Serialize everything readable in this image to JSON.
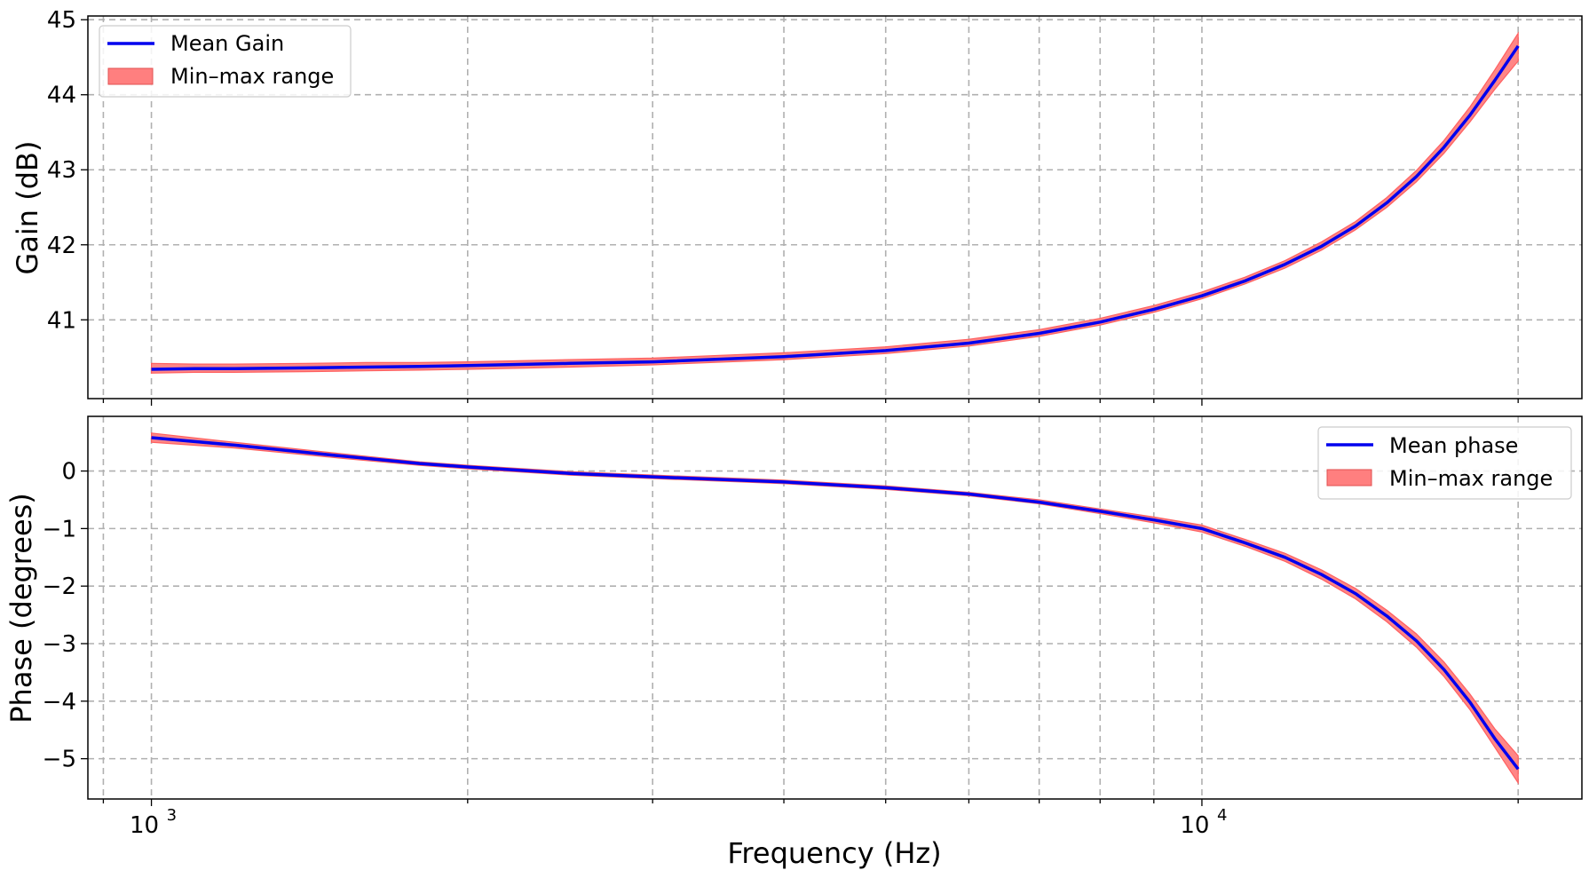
{
  "chart_data": [
    {
      "type": "line",
      "xscale": "log",
      "xlim": [
        870,
        23000
      ],
      "ylim": [
        39.95,
        45.05
      ],
      "ylabel": "Gain (dB)",
      "yticks": [
        41,
        42,
        43,
        44,
        45
      ],
      "ytick_labels": [
        "41",
        "42",
        "43",
        "44",
        "45"
      ],
      "grid": true,
      "legend_position": "upper left",
      "band_color": "#ff7f7f",
      "line_color": "#0000ee",
      "series": [
        {
          "name": "Mean Gain",
          "x": [
            1000,
            1100,
            1200,
            1400,
            1600,
            1800,
            2000,
            2500,
            3000,
            4000,
            5000,
            6000,
            7000,
            8000,
            9000,
            10000,
            11000,
            12000,
            13000,
            14000,
            15000,
            16000,
            17000,
            18000,
            19000,
            20000
          ],
          "y": [
            40.34,
            40.35,
            40.35,
            40.36,
            40.37,
            40.38,
            40.39,
            40.42,
            40.44,
            40.51,
            40.59,
            40.69,
            40.82,
            40.97,
            41.14,
            41.32,
            41.52,
            41.74,
            41.98,
            42.25,
            42.56,
            42.91,
            43.3,
            43.73,
            44.19,
            44.65
          ]
        },
        {
          "name": "Min–max range",
          "x": [
            1000,
            1100,
            1200,
            1400,
            1600,
            1800,
            2000,
            2500,
            3000,
            4000,
            5000,
            6000,
            7000,
            8000,
            9000,
            10000,
            11000,
            12000,
            13000,
            14000,
            15000,
            16000,
            17000,
            18000,
            19000,
            20000
          ],
          "low": [
            40.29,
            40.3,
            40.3,
            40.31,
            40.32,
            40.33,
            40.34,
            40.37,
            40.4,
            40.47,
            40.55,
            40.65,
            40.78,
            40.93,
            41.1,
            41.28,
            41.48,
            41.69,
            41.93,
            42.2,
            42.5,
            42.84,
            43.22,
            43.64,
            44.07,
            44.45
          ],
          "high": [
            40.42,
            40.41,
            40.41,
            40.42,
            40.43,
            40.43,
            40.44,
            40.47,
            40.49,
            40.56,
            40.64,
            40.74,
            40.87,
            41.02,
            41.19,
            41.37,
            41.57,
            41.79,
            42.04,
            42.31,
            42.63,
            42.99,
            43.39,
            43.84,
            44.33,
            44.82
          ]
        }
      ]
    },
    {
      "type": "line",
      "xscale": "log",
      "xlim": [
        870,
        23000
      ],
      "ylim": [
        -5.7,
        0.95
      ],
      "xlabel": "Frequency (Hz)",
      "ylabel": "Phase (degrees)",
      "xticks": [
        1000,
        10000
      ],
      "xtick_labels": [
        {
          "base": "10",
          "exp": "3"
        },
        {
          "base": "10",
          "exp": "4"
        }
      ],
      "yticks": [
        0,
        -1,
        -2,
        -3,
        -4,
        -5
      ],
      "ytick_labels": [
        "0",
        "−1",
        "−2",
        "−3",
        "−4",
        "−5"
      ],
      "grid": true,
      "legend_position": "upper right",
      "band_color": "#ff7f7f",
      "line_color": "#0000ee",
      "series": [
        {
          "name": "Mean phase",
          "x": [
            1000,
            1200,
            1500,
            1800,
            2000,
            2500,
            3000,
            4000,
            5000,
            6000,
            7000,
            8000,
            9000,
            10000,
            11000,
            12000,
            13000,
            14000,
            15000,
            16000,
            17000,
            18000,
            19000,
            20000
          ],
          "y": [
            0.58,
            0.45,
            0.27,
            0.13,
            0.07,
            -0.04,
            -0.1,
            -0.19,
            -0.29,
            -0.4,
            -0.54,
            -0.7,
            -0.85,
            -1.0,
            -1.25,
            -1.5,
            -1.8,
            -2.13,
            -2.52,
            -2.95,
            -3.45,
            -4.02,
            -4.65,
            -5.18
          ]
        },
        {
          "name": "Min–max range",
          "x": [
            1000,
            1200,
            1500,
            1800,
            2000,
            2500,
            3000,
            4000,
            5000,
            6000,
            7000,
            8000,
            9000,
            10000,
            11000,
            12000,
            13000,
            14000,
            15000,
            16000,
            17000,
            18000,
            19000,
            20000
          ],
          "low": [
            0.5,
            0.4,
            0.23,
            0.1,
            0.04,
            -0.07,
            -0.13,
            -0.22,
            -0.32,
            -0.43,
            -0.57,
            -0.74,
            -0.9,
            -1.06,
            -1.31,
            -1.57,
            -1.88,
            -2.22,
            -2.62,
            -3.06,
            -3.57,
            -4.15,
            -4.8,
            -5.42
          ],
          "high": [
            0.66,
            0.5,
            0.31,
            0.16,
            0.1,
            -0.01,
            -0.07,
            -0.16,
            -0.26,
            -0.37,
            -0.5,
            -0.66,
            -0.8,
            -0.94,
            -1.19,
            -1.43,
            -1.72,
            -2.04,
            -2.42,
            -2.83,
            -3.32,
            -3.88,
            -4.48,
            -4.95
          ]
        }
      ]
    }
  ]
}
